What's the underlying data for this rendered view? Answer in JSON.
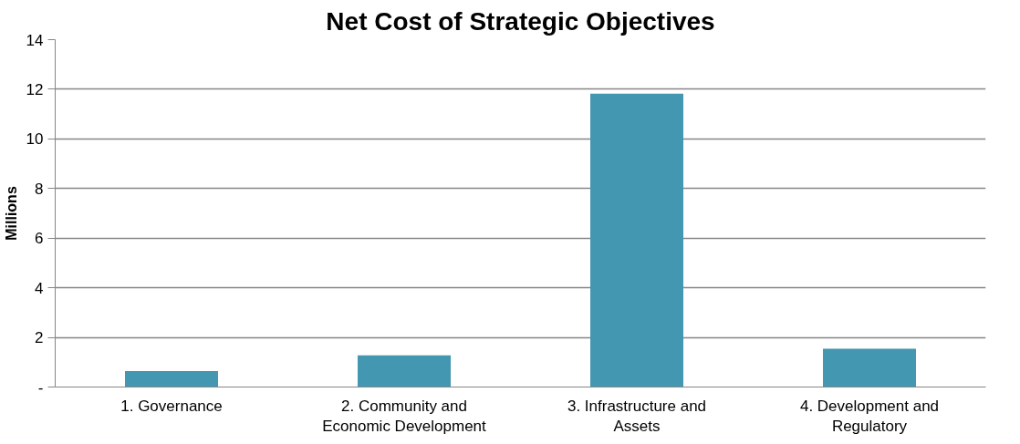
{
  "chart_data": {
    "type": "bar",
    "title": "Net Cost of Strategic Objectives",
    "ylabel": "Millions",
    "categories": [
      "1. Governance",
      "2. Community and Economic Development",
      "3. Infrastructure and Assets",
      "4. Development and Regulatory"
    ],
    "values": [
      0.64,
      1.28,
      11.82,
      1.54
    ],
    "color": "#4397b0",
    "ylim": [
      0,
      14
    ],
    "yticks": [
      {
        "value": 0,
        "label": "-"
      },
      2,
      4,
      6,
      8,
      10,
      12,
      14
    ],
    "grid": "y"
  }
}
